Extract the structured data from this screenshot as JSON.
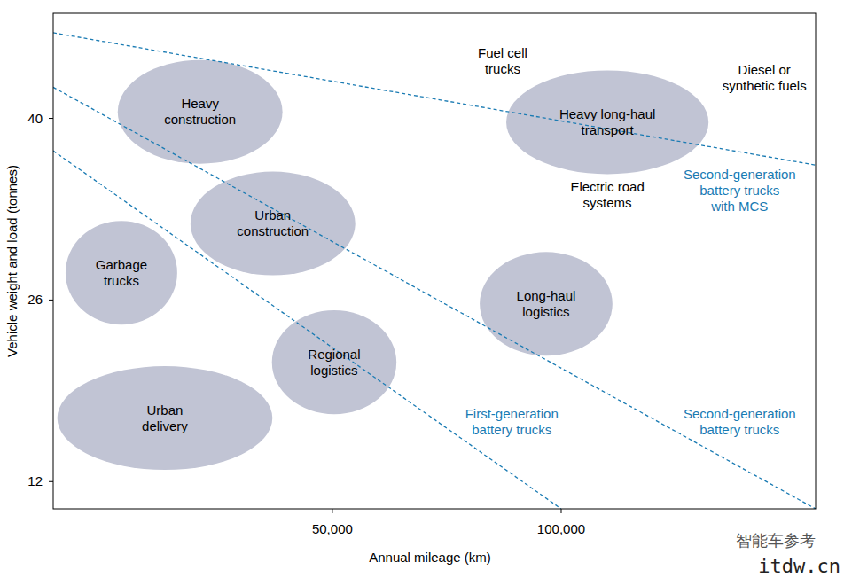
{
  "chart_data": {
    "type": "scatter",
    "x_label": "Annual mileage (km)",
    "y_label": "Vehicle weight and load (tonnes)",
    "xlim": [
      -11000,
      155600
    ],
    "ylim": [
      9.9,
      48.1
    ],
    "xticks": [
      {
        "value": 50000,
        "label": "50,000"
      },
      {
        "value": 100000,
        "label": "100,000"
      }
    ],
    "yticks": [
      12,
      26,
      40
    ],
    "grid": false,
    "color": "#c1c4d4",
    "labels": [
      [
        "Heavy",
        "construction"
      ],
      [
        "Urban",
        "construction"
      ],
      [
        "Garbage",
        "trucks"
      ],
      [
        "Regional",
        "logistics"
      ],
      [
        "Urban",
        "delivery"
      ],
      [
        "Long-haul",
        "logistics"
      ],
      [
        "Heavy long-haul",
        "transport"
      ]
    ],
    "x": [
      21100,
      37000,
      3900,
      50400,
      13400,
      96700,
      110100
    ],
    "values": [
      40.5,
      31.9,
      28.1,
      21.2,
      16.9,
      25.7,
      39.7
    ],
    "x_radius": [
      18000,
      18000,
      12200,
      13600,
      23500,
      14500,
      22100
    ],
    "y_radius": [
      4.0,
      4.0,
      4.0,
      4.0,
      4.0,
      4.0,
      4.0
    ],
    "lines": [
      {
        "x": [
          -11000,
          100000
        ],
        "y": [
          37.5,
          9.9
        ],
        "color": "#1a7bb3",
        "line_style": "dashed"
      },
      {
        "x": [
          -11000,
          155600
        ],
        "y": [
          42.4,
          9.9
        ],
        "color": "#1a7bb3",
        "line_style": "dashed"
      },
      {
        "x": [
          -11000,
          155600
        ],
        "y": [
          46.6,
          36.4
        ],
        "color": "#1a7bb3",
        "line_style": "dashed"
      }
    ],
    "annotations": [
      {
        "text": [
          "Fuel cell",
          "trucks"
        ],
        "x": 87200,
        "y": 44.4,
        "color": "#000000"
      },
      {
        "text": [
          "Diesel or",
          "synthetic fuels"
        ],
        "x": 144400,
        "y": 43.1,
        "color": "#000000"
      },
      {
        "text": [
          "Electric road",
          "systems"
        ],
        "x": 110100,
        "y": 34.1,
        "color": "#000000"
      },
      {
        "text": [
          "Second-generation",
          "battery trucks",
          "with MCS"
        ],
        "x": 139000,
        "y": 34.4,
        "color": "#1a7bb3"
      },
      {
        "text": [
          "Second-generation",
          "battery trucks"
        ],
        "x": 139000,
        "y": 16.6,
        "color": "#1a7bb3"
      },
      {
        "text": [
          "First-generation",
          "battery trucks"
        ],
        "x": 89200,
        "y": 16.6,
        "color": "#1a7bb3"
      }
    ],
    "watermark": [
      "智能车参考",
      "itdw.cn"
    ]
  }
}
